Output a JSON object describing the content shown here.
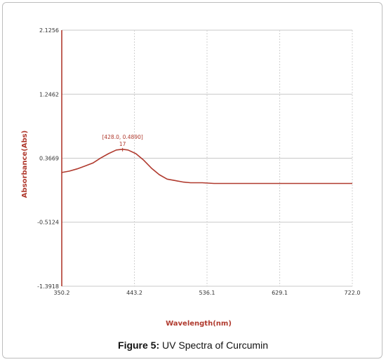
{
  "caption": {
    "label": "Figure 5:",
    "text": " UV Spectra of Curcumin"
  },
  "chart_data": {
    "type": "line",
    "title": "",
    "xlabel": "Wavelength(nm)",
    "ylabel": "Absorbance(Abs)",
    "xlim": [
      350.2,
      722.0
    ],
    "ylim": [
      -1.3918,
      2.1256
    ],
    "x_ticks": [
      "350.2",
      "443.2",
      "536.1",
      "629.1",
      "722.0"
    ],
    "x_tick_values": [
      350.2,
      443.2,
      536.1,
      629.1,
      722.0
    ],
    "y_ticks": [
      "2.1256",
      "1.2462",
      "0.3669",
      "-0.5124",
      "-1.3918"
    ],
    "y_tick_values": [
      2.1256,
      1.2462,
      0.3669,
      -0.5124,
      -1.3918
    ],
    "grid": true,
    "line_color": "#b03a2e",
    "series": [
      {
        "x": [
          350.2,
          360,
          370,
          380,
          390,
          400,
          410,
          420,
          428,
          435,
          445,
          455,
          465,
          475,
          485,
          495,
          505,
          515,
          530,
          545,
          560,
          600,
          650,
          700,
          722
        ],
        "y": [
          0.17,
          0.19,
          0.22,
          0.26,
          0.3,
          0.37,
          0.43,
          0.48,
          0.489,
          0.48,
          0.43,
          0.34,
          0.23,
          0.14,
          0.08,
          0.06,
          0.04,
          0.03,
          0.03,
          0.02,
          0.02,
          0.02,
          0.02,
          0.02,
          0.02
        ]
      }
    ],
    "peak_annotation": {
      "text": "[428.0, 0.4890]",
      "index_label": "17",
      "x": 428.0,
      "y": 0.489
    }
  }
}
